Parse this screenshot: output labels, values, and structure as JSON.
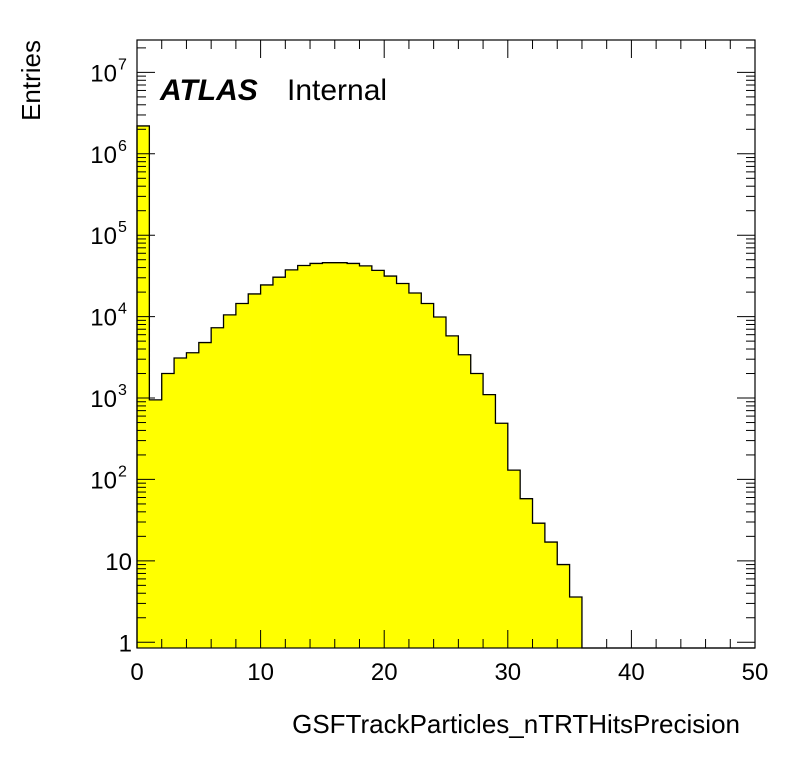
{
  "chart_data": {
    "type": "bar",
    "title": "",
    "xlabel": "GSFTrackParticles_nTRTHitsPrecision",
    "ylabel": "Entries",
    "xlim": [
      0,
      50
    ],
    "ylim": [
      0.85,
      25000000
    ],
    "log_y": true,
    "bin_width": 1,
    "bin_edges_start": 0,
    "fill_color": "#ffff00",
    "line_color": "#000000",
    "grid": false,
    "legend": "none",
    "x_ticks": [
      {
        "value": 0,
        "label": "0"
      },
      {
        "value": 10,
        "label": "10"
      },
      {
        "value": 20,
        "label": "20"
      },
      {
        "value": 30,
        "label": "30"
      },
      {
        "value": 40,
        "label": "40"
      },
      {
        "value": 50,
        "label": "50"
      }
    ],
    "y_ticks": [
      {
        "value": 1,
        "base": "1",
        "exp": ""
      },
      {
        "value": 10,
        "base": "10",
        "exp": ""
      },
      {
        "value": 100,
        "base": "10",
        "exp": "2"
      },
      {
        "value": 1000,
        "base": "10",
        "exp": "3"
      },
      {
        "value": 10000,
        "base": "10",
        "exp": "4"
      },
      {
        "value": 100000,
        "base": "10",
        "exp": "5"
      },
      {
        "value": 1000000,
        "base": "10",
        "exp": "6"
      },
      {
        "value": 10000000,
        "base": "10",
        "exp": "7"
      }
    ],
    "values": [
      2200000,
      950,
      2000,
      3100,
      3600,
      4800,
      7300,
      10500,
      14500,
      19000,
      24500,
      30500,
      37500,
      42500,
      45000,
      46000,
      46000,
      45000,
      42000,
      37000,
      31500,
      25500,
      19500,
      14500,
      9900,
      5800,
      3400,
      2000,
      1100,
      490,
      130,
      58,
      29,
      17,
      9,
      3.6,
      0,
      0,
      0,
      0,
      0,
      0,
      0,
      0,
      0,
      0,
      0,
      0,
      0,
      0
    ],
    "annotations": {
      "experiment": "ATLAS",
      "status": "Internal"
    }
  }
}
